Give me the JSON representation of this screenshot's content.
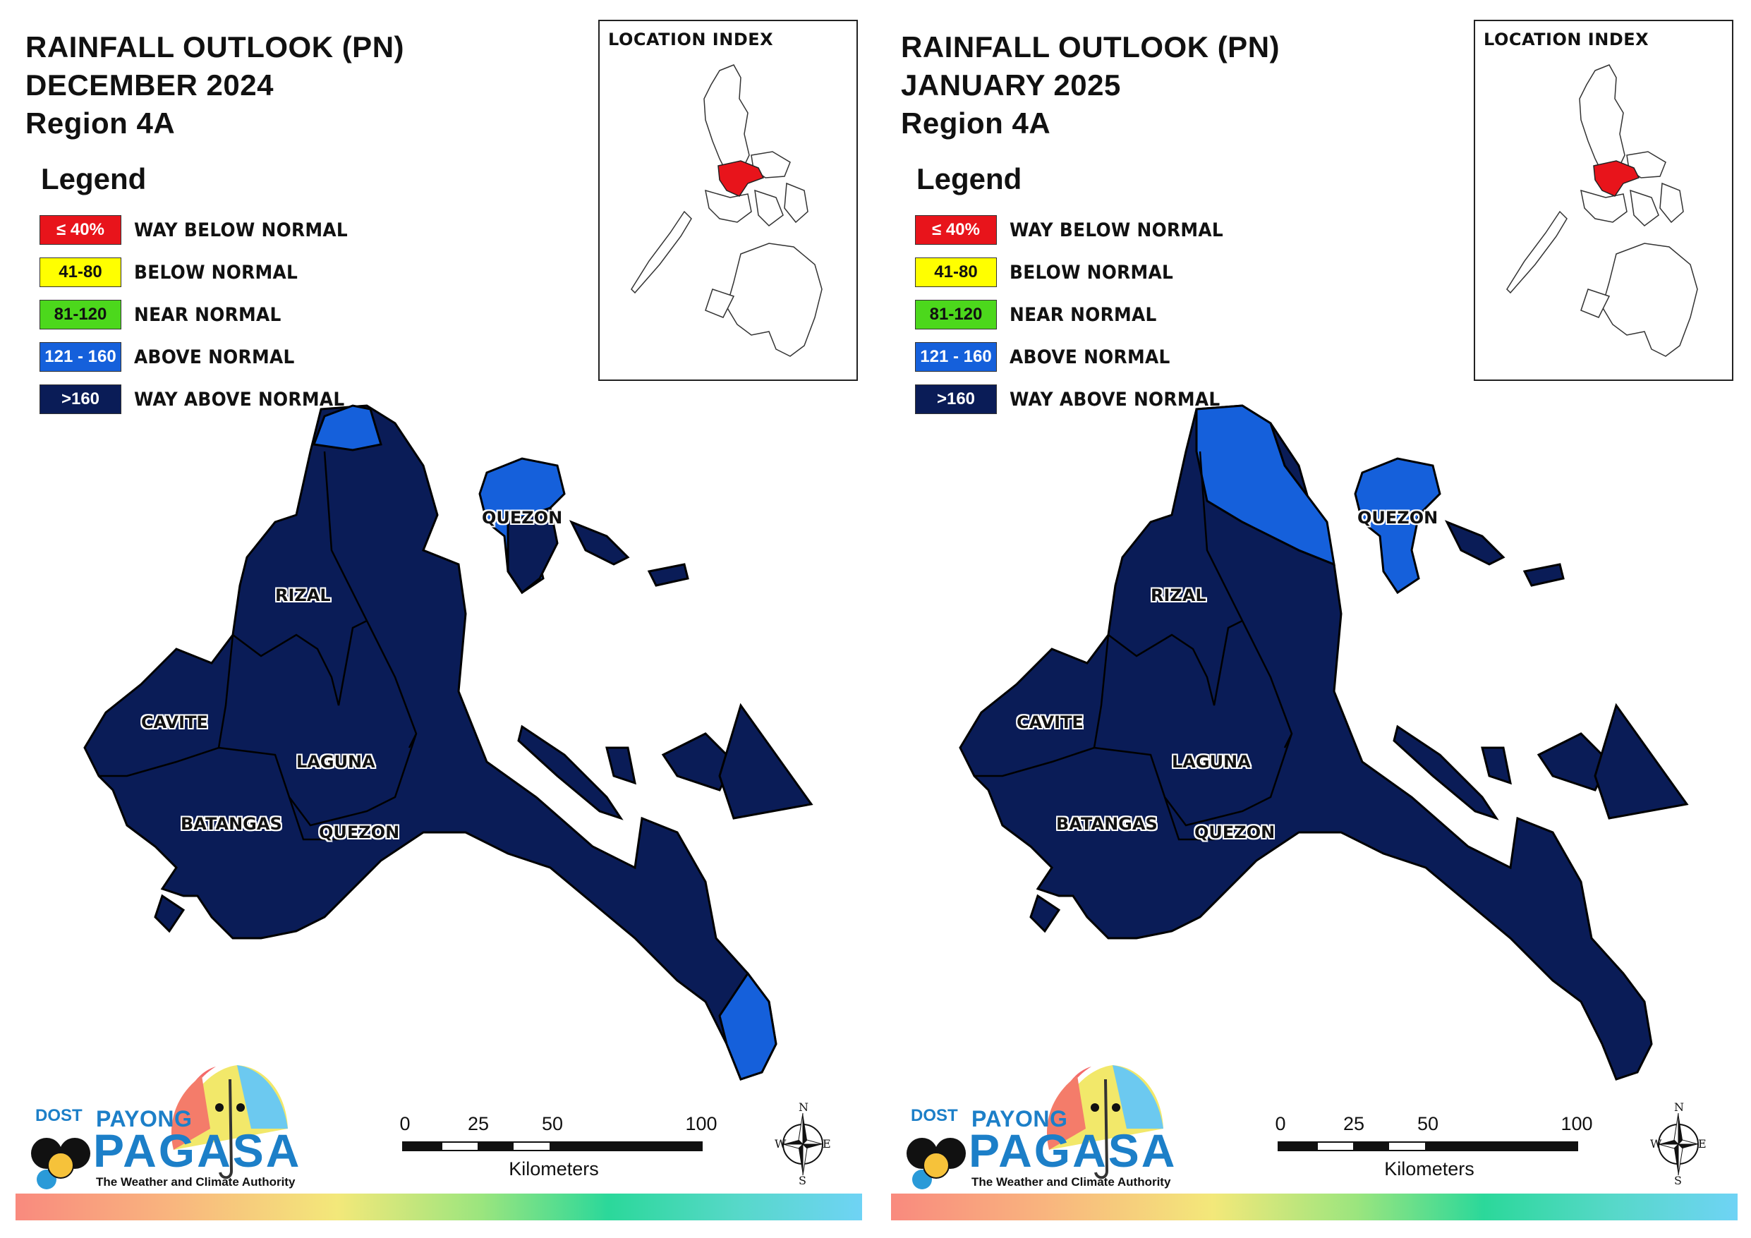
{
  "panels": [
    {
      "title_line1": "RAINFALL OUTLOOK (PN)",
      "title_line2": "DECEMBER 2024",
      "title_line3": "Region 4A",
      "legend_heading": "Legend",
      "inset_title": "LOCATION INDEX",
      "provinces": [
        "QUEZON",
        "RIZAL",
        "CAVITE",
        "LAGUNA",
        "BATANGAS",
        "QUEZON"
      ],
      "scale_unit": "Kilometers",
      "compass": {
        "n": "N",
        "s": "S",
        "e": "E",
        "w": "W"
      },
      "logo": {
        "dost": "DOST",
        "payong": "PAYONG",
        "pagasa": "PAGASA",
        "tagline": "The Weather and Climate Authority"
      }
    },
    {
      "title_line1": "RAINFALL OUTLOOK (PN)",
      "title_line2": "JANUARY 2025",
      "title_line3": "Region 4A",
      "legend_heading": "Legend",
      "inset_title": "LOCATION INDEX",
      "provinces": [
        "QUEZON",
        "RIZAL",
        "CAVITE",
        "LAGUNA",
        "BATANGAS",
        "QUEZON"
      ],
      "scale_unit": "Kilometers",
      "compass": {
        "n": "N",
        "s": "S",
        "e": "E",
        "w": "W"
      },
      "logo": {
        "dost": "DOST",
        "payong": "PAYONG",
        "pagasa": "PAGASA",
        "tagline": "The Weather and Climate Authority"
      }
    }
  ],
  "legend": [
    {
      "range": "≤ 40%",
      "label": "WAY BELOW NORMAL",
      "color": "#e8141b",
      "text_color": "#ffffff"
    },
    {
      "range": "41-80",
      "label": "BELOW NORMAL",
      "color": "#ffff00",
      "text_color": "#111111"
    },
    {
      "range": "81-120",
      "label": "NEAR NORMAL",
      "color": "#4cd81c",
      "text_color": "#111111"
    },
    {
      "range": "121 - 160",
      "label": "ABOVE NORMAL",
      "color": "#1560db",
      "text_color": "#ffffff"
    },
    {
      "range": ">160",
      "label": "WAY ABOVE NORMAL",
      "color": "#0a1c57",
      "text_color": "#ffffff"
    }
  ],
  "scale_ticks": [
    "0",
    "25",
    "50",
    "100"
  ],
  "colors": {
    "way_above": "#0a1c57",
    "above": "#1560db",
    "highlight": "#e8141b"
  }
}
